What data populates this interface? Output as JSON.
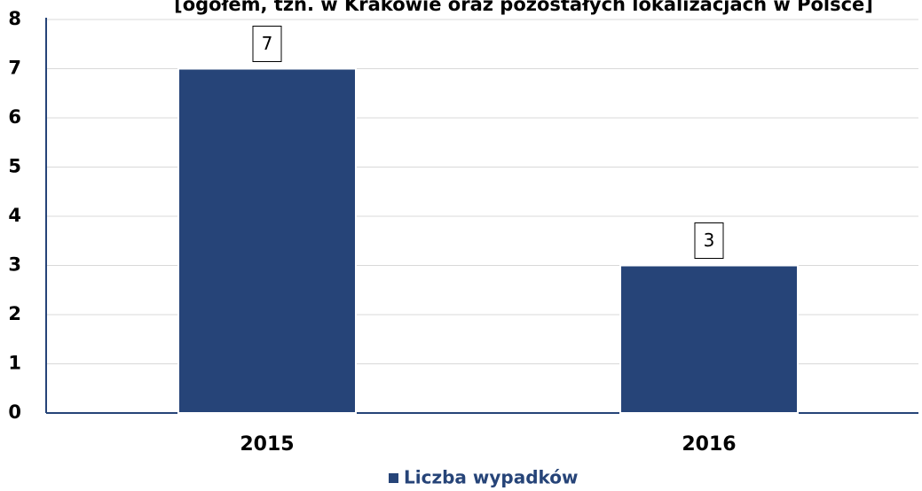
{
  "chart_data": {
    "type": "bar",
    "title": "[ogółem, tzn. w Krakowie oraz pozostałych lokalizacjach w Polsce]",
    "categories": [
      "2015",
      "2016"
    ],
    "series": [
      {
        "name": "Liczba wypadków",
        "color": "#264478",
        "values": [
          7,
          3
        ]
      }
    ],
    "ylim": [
      0,
      8
    ],
    "yticks": [
      0,
      1,
      2,
      3,
      4,
      5,
      6,
      7,
      8
    ],
    "grid": true,
    "legend": "bottom"
  }
}
